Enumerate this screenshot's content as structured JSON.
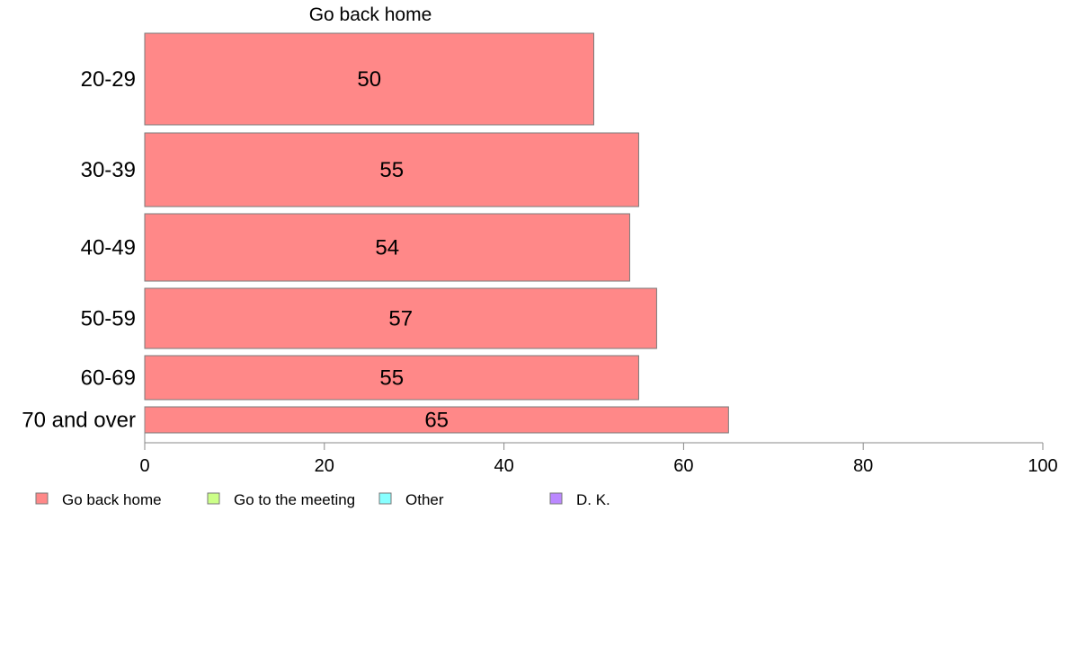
{
  "chart_data": {
    "type": "bar",
    "orientation": "horizontal",
    "title": "Go back home",
    "categories": [
      "20-29",
      "30-39",
      "40-49",
      "50-59",
      "60-69",
      "70 and over"
    ],
    "series": [
      {
        "name": "Go back home",
        "values": [
          50,
          55,
          54,
          57,
          55,
          65
        ],
        "color": "#ff8888"
      }
    ],
    "data_labels": [
      "50",
      "55",
      "54",
      "57",
      "55",
      "65"
    ],
    "xlim": [
      0,
      100
    ],
    "x_ticks": [
      0,
      20,
      40,
      60,
      80,
      100
    ],
    "legend_position": "bottom-left",
    "legend": [
      {
        "label": "Go back home",
        "color": "#ff8888"
      },
      {
        "label": "Go to the meeting",
        "color": "#ccff88"
      },
      {
        "label": "Other",
        "color": "#88ffff"
      },
      {
        "label": "D. K.",
        "color": "#bb88ff"
      }
    ],
    "grid": false
  }
}
